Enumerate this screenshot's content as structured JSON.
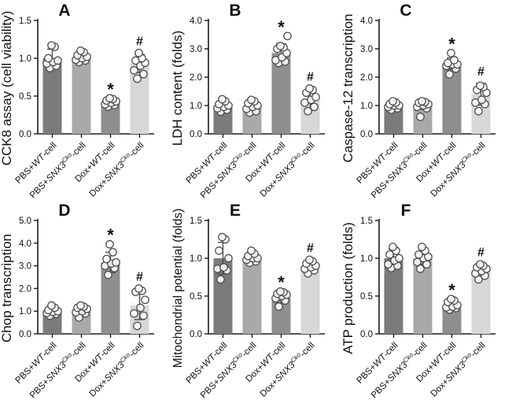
{
  "figure": {
    "background": "#ffffff",
    "axis_color": "#1a1a1a",
    "error_bar_color": "#4d4d4d",
    "bar_colors": [
      "#7b7b7b",
      "#a9a9a9",
      "#8f8f8f",
      "#d7d7d7"
    ],
    "point_style": {
      "fill": "#ffffff",
      "stroke": "#4d4d4d"
    },
    "significance_symbols": {
      "treated_vs_control": "*",
      "rescue_vs_treated": "#"
    },
    "category_parts": [
      [
        {
          "t": "PBS+"
        },
        {
          "t": "WT",
          "i": true
        },
        {
          "t": "-cell"
        }
      ],
      [
        {
          "t": "PBS+"
        },
        {
          "t": "SNX3",
          "i": true
        },
        {
          "t": "Cko",
          "i": true,
          "s": true
        },
        {
          "t": "-cell"
        }
      ],
      [
        {
          "t": "Dox+"
        },
        {
          "t": "WT",
          "i": true
        },
        {
          "t": "-cell"
        }
      ],
      [
        {
          "t": "Dox+"
        },
        {
          "t": "SNX3",
          "i": true
        },
        {
          "t": "Cko",
          "i": true,
          "s": true
        },
        {
          "t": "-cell"
        }
      ]
    ]
  },
  "chart_data": [
    {
      "type": "bar",
      "panel": "A",
      "ylabel": "CCK8 assay (cell viability)",
      "ylim": [
        0,
        1.5
      ],
      "ytick_step": 0.5,
      "categories": [
        "PBS+WT-cell",
        "PBS+SNX3Cko-cell",
        "Dox+WT-cell",
        "Dox+SNX3Cko-cell"
      ],
      "values": [
        1.0,
        1.0,
        0.41,
        0.93
      ],
      "errors": [
        0.12,
        0.05,
        0.04,
        0.12
      ],
      "annotations": [
        "",
        "",
        "*",
        "#"
      ],
      "points": [
        [
          0.87,
          0.9,
          0.93,
          0.95,
          0.97,
          1.0,
          1.15,
          1.17
        ],
        [
          0.95,
          0.97,
          0.98,
          1.0,
          1.02,
          1.04,
          1.08,
          1.1
        ],
        [
          0.36,
          0.38,
          0.39,
          0.41,
          0.43,
          0.44,
          0.46,
          0.47
        ],
        [
          0.73,
          0.79,
          0.84,
          0.9,
          0.94,
          0.97,
          1.0,
          1.07
        ]
      ]
    },
    {
      "type": "bar",
      "panel": "B",
      "ylabel": "LDH content (folds)",
      "ylim": [
        0,
        4.0
      ],
      "ytick_step": 1.0,
      "categories": [
        "PBS+WT-cell",
        "PBS+SNX3Cko-cell",
        "Dox+WT-cell",
        "Dox+SNX3Cko-cell"
      ],
      "values": [
        1.0,
        0.95,
        2.85,
        1.2
      ],
      "errors": [
        0.15,
        0.18,
        0.33,
        0.32
      ],
      "annotations": [
        "",
        "",
        "*",
        "#"
      ],
      "points": [
        [
          0.78,
          0.85,
          0.9,
          0.95,
          1.0,
          1.05,
          1.15,
          1.22
        ],
        [
          0.75,
          0.8,
          0.88,
          0.95,
          1.0,
          1.08,
          1.15,
          1.2
        ],
        [
          2.5,
          2.55,
          2.6,
          2.7,
          2.85,
          3.0,
          3.05,
          3.1,
          3.45
        ],
        [
          0.8,
          0.95,
          1.1,
          1.2,
          1.3,
          1.45,
          1.55,
          1.6
        ]
      ]
    },
    {
      "type": "bar",
      "panel": "C",
      "ylabel": "Caspase-12 transcription",
      "ylim": [
        0,
        4.0
      ],
      "ytick_step": 1.0,
      "categories": [
        "PBS+WT-cell",
        "PBS+SNX3Cko-cell",
        "Dox+WT-cell",
        "Dox+SNX3Cko-cell"
      ],
      "values": [
        1.0,
        1.0,
        2.48,
        1.4
      ],
      "errors": [
        0.1,
        0.13,
        0.2,
        0.38
      ],
      "annotations": [
        "",
        "",
        "*",
        "#"
      ],
      "points": [
        [
          0.85,
          0.9,
          0.95,
          1.0,
          1.0,
          1.05,
          1.1,
          1.15
        ],
        [
          0.6,
          0.9,
          0.95,
          1.0,
          1.05,
          1.1,
          1.12,
          1.15
        ],
        [
          2.1,
          2.3,
          2.4,
          2.45,
          2.45,
          2.5,
          2.6,
          2.85
        ],
        [
          0.8,
          1.05,
          1.1,
          1.2,
          1.45,
          1.55,
          1.65,
          1.7
        ]
      ]
    },
    {
      "type": "bar",
      "panel": "D",
      "ylabel": "Chop transcription",
      "ylim": [
        0,
        5.0
      ],
      "ytick_step": 1.0,
      "categories": [
        "PBS+WT-cell",
        "PBS+SNX3Cko-cell",
        "Dox+WT-cell",
        "Dox+SNX3Cko-cell"
      ],
      "values": [
        1.0,
        1.03,
        3.15,
        1.25
      ],
      "errors": [
        0.14,
        0.15,
        0.45,
        0.62
      ],
      "annotations": [
        "",
        "",
        "*",
        "#"
      ],
      "points": [
        [
          0.8,
          0.88,
          0.92,
          0.97,
          1.0,
          1.05,
          1.15,
          1.25
        ],
        [
          0.72,
          0.9,
          0.95,
          1.0,
          1.1,
          1.15,
          1.2,
          1.25
        ],
        [
          2.6,
          2.9,
          3.0,
          3.1,
          3.15,
          3.3,
          3.6,
          3.95
        ],
        [
          0.35,
          0.8,
          0.9,
          1.15,
          1.5,
          1.85,
          1.9,
          2.0
        ]
      ]
    },
    {
      "type": "bar",
      "panel": "E",
      "ylabel": "Mitochondrial potential (folds)",
      "ylim": [
        0,
        1.5
      ],
      "ytick_step": 0.5,
      "categories": [
        "PBS+WT-cell",
        "PBS+SNX3Cko-cell",
        "Dox+WT-cell",
        "Dox+SNX3Cko-cell"
      ],
      "values": [
        1.0,
        1.0,
        0.48,
        0.9
      ],
      "errors": [
        0.21,
        0.05,
        0.07,
        0.07
      ],
      "annotations": [
        "",
        "",
        "*",
        "#"
      ],
      "points": [
        [
          0.72,
          0.84,
          0.86,
          0.88,
          1.0,
          1.1,
          1.25,
          1.28
        ],
        [
          0.94,
          0.96,
          0.98,
          1.0,
          1.0,
          1.03,
          1.06,
          1.1
        ],
        [
          0.36,
          0.44,
          0.47,
          0.5,
          0.52,
          0.53,
          0.55,
          0.56
        ],
        [
          0.8,
          0.84,
          0.86,
          0.88,
          0.9,
          0.93,
          0.96,
          0.98
        ]
      ]
    },
    {
      "type": "bar",
      "panel": "F",
      "ylabel": "ATP production (folds)",
      "ylim": [
        0,
        1.5
      ],
      "ytick_step": 0.5,
      "categories": [
        "PBS+WT-cell",
        "PBS+SNX3Cko-cell",
        "Dox+WT-cell",
        "Dox+SNX3Cko-cell"
      ],
      "values": [
        1.0,
        1.0,
        0.36,
        0.84
      ],
      "errors": [
        0.12,
        0.08,
        0.04,
        0.08
      ],
      "annotations": [
        "",
        "",
        "*",
        "#"
      ],
      "points": [
        [
          0.87,
          0.9,
          0.92,
          0.97,
          1.0,
          1.05,
          1.1,
          1.15
        ],
        [
          0.86,
          0.92,
          0.95,
          1.0,
          1.02,
          1.05,
          1.1,
          1.15
        ],
        [
          0.32,
          0.34,
          0.35,
          0.36,
          0.38,
          0.42,
          0.44,
          0.46
        ],
        [
          0.72,
          0.77,
          0.8,
          0.83,
          0.86,
          0.88,
          0.9,
          0.92
        ]
      ]
    }
  ]
}
